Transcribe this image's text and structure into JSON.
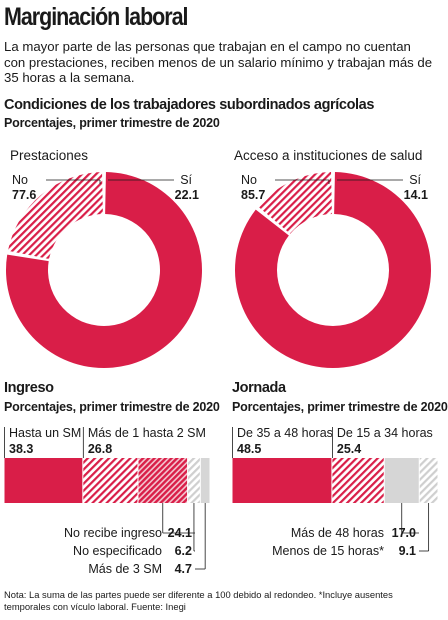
{
  "title": "Marginación laboral",
  "intro": "La mayor parte de las personas que trabajan en el campo no cuentan con prestaciones, reciben menos de un salario mínimo y trabajan más de 35 horas a la semana.",
  "section1": {
    "title": "Condiciones de los trabajadores subordinados agrícolas",
    "subtitle": "Porcentajes, primer trimestre de 2020"
  },
  "section2": {
    "title": "Ingreso",
    "subtitle": "Porcentajes, primer trimestre de 2020"
  },
  "section3": {
    "title": "Jornada",
    "subtitle": "Porcentajes, primer trimestre de 2020"
  },
  "colors": {
    "primary": "#d91e48",
    "hatch": "#d91e48",
    "grey": "#d6d6d6",
    "text": "#1a1a1a"
  },
  "chart_data": [
    {
      "type": "pie",
      "title": "Prestaciones",
      "slices": [
        {
          "label": "No",
          "value": 77.6,
          "fill": "solid"
        },
        {
          "label": "Sí",
          "value": 22.1,
          "fill": "hatch"
        }
      ]
    },
    {
      "type": "pie",
      "title": "Acceso a instituciones de salud",
      "slices": [
        {
          "label": "No",
          "value": 85.7,
          "fill": "solid"
        },
        {
          "label": "Sí",
          "value": 14.1,
          "fill": "hatch"
        }
      ]
    },
    {
      "type": "bar",
      "title": "Ingreso",
      "segments": [
        {
          "label": "Hasta un SM",
          "value": 38.3,
          "fill": "solid"
        },
        {
          "label": "Más de 1 hasta 2 SM",
          "value": 26.8,
          "fill": "hatch"
        },
        {
          "label": "No recibe ingreso",
          "value": 24.1,
          "fill": "hatch-dense"
        },
        {
          "label": "No especificado",
          "value": 6.2,
          "fill": "hatch-grey"
        },
        {
          "label": "Más de 3 SM",
          "value": 4.7,
          "fill": "grey"
        }
      ]
    },
    {
      "type": "bar",
      "title": "Jornada",
      "segments": [
        {
          "label": "De 35 a 48 horas",
          "value": 48.5,
          "fill": "solid"
        },
        {
          "label": "De 15 a 34 horas",
          "value": 25.4,
          "fill": "hatch"
        },
        {
          "label": "Más de 48 horas",
          "value": 17.0,
          "fill": "grey"
        },
        {
          "label": "Menos de 15 horas*",
          "value": 9.1,
          "fill": "hatch-grey"
        }
      ]
    }
  ],
  "note": "Nota: La suma de las partes puede ser diferente a 100 debido al redondeo. *Incluye ausentes temporales con vículo laboral. Fuente: Inegi"
}
